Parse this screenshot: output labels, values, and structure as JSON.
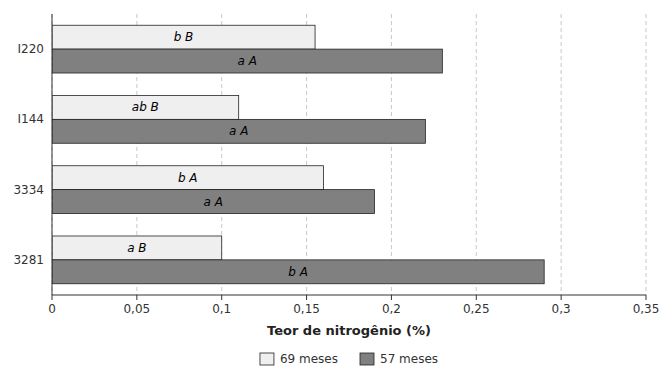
{
  "chart_data": {
    "type": "bar",
    "orientation": "horizontal",
    "categories": [
      "I220",
      "I144",
      "3334",
      "3281"
    ],
    "series": [
      {
        "name": "69 meses",
        "color": "#efefef",
        "values": [
          0.155,
          0.11,
          0.16,
          0.1
        ],
        "labels": [
          "b B",
          "ab B",
          "b A",
          "a B"
        ]
      },
      {
        "name": "57 meses",
        "color": "#808080",
        "values": [
          0.23,
          0.22,
          0.19,
          0.29
        ],
        "labels": [
          "a A",
          "a A",
          "a A",
          "b A"
        ]
      }
    ],
    "xlabel": "Teor de nitrogênio (%)",
    "xlim": [
      0,
      0.35
    ],
    "xticks": [
      0,
      {
        "value": 0.05,
        "label": "0,05"
      },
      {
        "value": 0.1,
        "label": "0,1"
      },
      {
        "value": 0.15,
        "label": "0,15"
      },
      {
        "value": 0.2,
        "label": "0,2"
      },
      {
        "value": 0.25,
        "label": "0,25"
      },
      {
        "value": 0.3,
        "label": "0,3"
      },
      {
        "value": 0.35,
        "label": "0,35"
      }
    ],
    "grid": true,
    "legend": "bottom"
  }
}
